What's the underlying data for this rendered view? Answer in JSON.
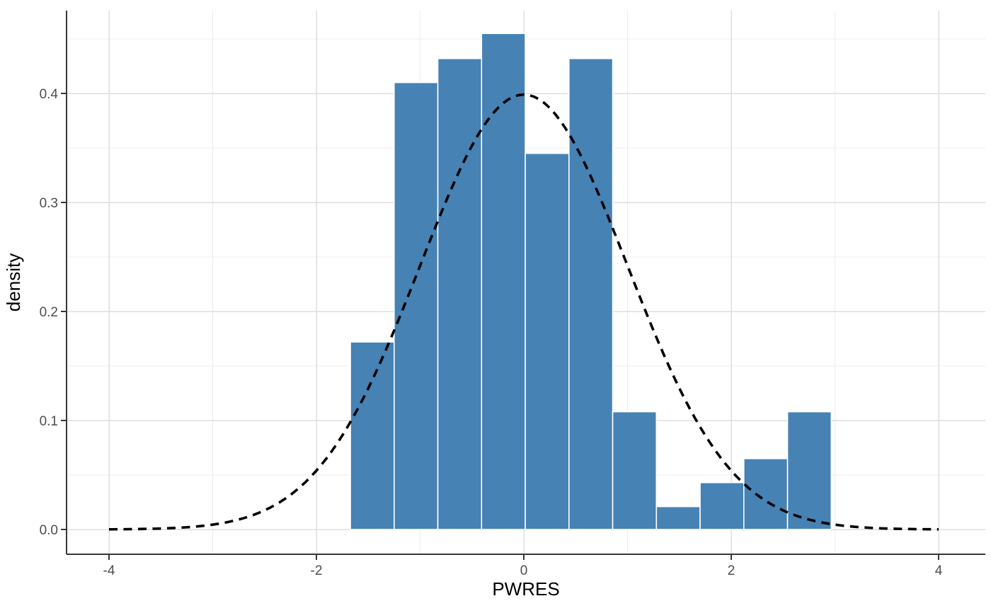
{
  "page": {
    "background": "#FFFFFF"
  },
  "chart_data": {
    "type": "bar",
    "subtype": "density-histogram-with-normal-curve",
    "title": "",
    "xlabel": "PWRES",
    "ylabel": "density",
    "legend_position": "none",
    "grid": {
      "show": true,
      "major_color": "#DEDEDE",
      "minor_color": "#EDEDED"
    },
    "axis_style": {
      "line_color": "#383838",
      "tick_color": "#383838",
      "tick_label_color": "#4D4D4D",
      "title_color": "#000000"
    },
    "x_axis": {
      "range": [
        -4.41,
        4.45
      ],
      "ticks": [
        -4,
        -2,
        0,
        2,
        4
      ],
      "tick_labels": [
        "-4",
        "-2",
        "0",
        "2",
        "4"
      ],
      "minor_ticks": [
        -3,
        -1,
        1,
        3
      ]
    },
    "y_axis": {
      "range": [
        -0.023,
        0.476
      ],
      "ticks": [
        0,
        0.1,
        0.2,
        0.3,
        0.4
      ],
      "tick_labels": [
        "0.0",
        "0.1",
        "0.2",
        "0.3",
        "0.4"
      ],
      "minor_ticks": [
        0.05,
        0.15,
        0.25,
        0.35,
        0.45
      ]
    },
    "histogram": {
      "bin_start": -1.672,
      "bin_width": 0.4215,
      "densities": [
        0.172,
        0.41,
        0.432,
        0.455,
        0.345,
        0.432,
        0.108,
        0.021,
        0.043,
        0.065,
        0.108
      ],
      "bin_edges": [
        -1.672,
        -1.251,
        -0.829,
        -0.408,
        0.014,
        0.436,
        0.857,
        1.279,
        1.7,
        2.122,
        2.543,
        2.965
      ],
      "fill_color": "#4682B4",
      "edge_color": "#FFFFFF"
    },
    "overlay_curve": {
      "distribution": "normal",
      "mean": 0,
      "sd": 1,
      "peak_density": 0.3989,
      "x_range": [
        -4,
        4
      ],
      "line_style": "dashed",
      "color": "#000000"
    }
  }
}
